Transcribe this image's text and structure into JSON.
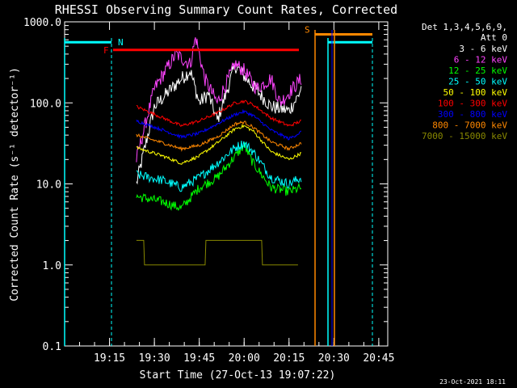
{
  "chart_data": {
    "type": "line",
    "title": "RHESSI Observing Summary Count Rates, Corrected",
    "xlabel": "Start Time (27-Oct-13 19:07:22)",
    "ylabel": "Corrected Count Rate (s⁻¹ detector⁻¹)",
    "yscale": "log",
    "ylim": [
      0.1,
      1000.0
    ],
    "y_ticks": [
      "0.1",
      "1.0",
      "10.0",
      "100.0",
      "1000.0"
    ],
    "xlim_minutes_after_1907": [
      0,
      40
    ],
    "x_ticks": [
      "19:15",
      "19:30",
      "19:45",
      "20:00",
      "20:15",
      "20:30",
      "20:45"
    ],
    "legend_title": [
      "Det 1,3,4,5,6,9,",
      "Att 0"
    ],
    "legend_position": "right",
    "series": [
      {
        "name": "3 - 6 keV",
        "color": "#ffffff",
        "anchors": [
          [
            19.4,
            10
          ],
          [
            19.5,
            90
          ],
          [
            19.63,
            180
          ],
          [
            19.7,
            250
          ],
          [
            19.75,
            100
          ],
          [
            19.8,
            130
          ],
          [
            19.85,
            60
          ],
          [
            19.95,
            290
          ],
          [
            20.05,
            160
          ],
          [
            20.15,
            90
          ],
          [
            20.25,
            80
          ],
          [
            20.3,
            120
          ],
          [
            20.32,
            160
          ]
        ]
      },
      {
        "name": "6 - 12 keV",
        "color": "#ff44ff",
        "anchors": [
          [
            19.4,
            20
          ],
          [
            19.5,
            150
          ],
          [
            19.62,
            400
          ],
          [
            19.7,
            300
          ],
          [
            19.73,
            650
          ],
          [
            19.78,
            200
          ],
          [
            19.85,
            100
          ],
          [
            19.95,
            300
          ],
          [
            20.0,
            250
          ],
          [
            20.07,
            150
          ],
          [
            20.15,
            200
          ],
          [
            20.2,
            100
          ],
          [
            20.32,
            200
          ]
        ]
      },
      {
        "name": "12 - 25 keV",
        "color": "#00ff00",
        "anchors": [
          [
            19.4,
            7
          ],
          [
            19.55,
            6
          ],
          [
            19.65,
            5
          ],
          [
            19.75,
            9
          ],
          [
            19.85,
            12
          ],
          [
            19.95,
            22
          ],
          [
            20.0,
            30
          ],
          [
            20.05,
            18
          ],
          [
            20.15,
            9
          ],
          [
            20.25,
            8
          ],
          [
            20.32,
            9
          ]
        ]
      },
      {
        "name": "25 - 50 keV",
        "color": "#00ffff",
        "anchors": [
          [
            19.4,
            13
          ],
          [
            19.55,
            11
          ],
          [
            19.65,
            9
          ],
          [
            19.75,
            12
          ],
          [
            19.85,
            18
          ],
          [
            19.95,
            28
          ],
          [
            20.0,
            32
          ],
          [
            20.05,
            25
          ],
          [
            20.15,
            12
          ],
          [
            20.25,
            10
          ],
          [
            20.32,
            12
          ]
        ]
      },
      {
        "name": "50 - 100 keV",
        "color": "#ffff00",
        "anchors": [
          [
            19.4,
            28
          ],
          [
            19.55,
            22
          ],
          [
            19.65,
            18
          ],
          [
            19.75,
            22
          ],
          [
            19.85,
            32
          ],
          [
            19.95,
            48
          ],
          [
            20.0,
            52
          ],
          [
            20.05,
            45
          ],
          [
            20.15,
            25
          ],
          [
            20.25,
            20
          ],
          [
            20.32,
            24
          ]
        ]
      },
      {
        "name": "100 - 300 keV",
        "color": "#ff0000",
        "anchors": [
          [
            19.4,
            90
          ],
          [
            19.55,
            65
          ],
          [
            19.65,
            52
          ],
          [
            19.75,
            60
          ],
          [
            19.85,
            75
          ],
          [
            19.95,
            100
          ],
          [
            20.0,
            105
          ],
          [
            20.05,
            95
          ],
          [
            20.15,
            65
          ],
          [
            20.25,
            52
          ],
          [
            20.32,
            60
          ]
        ]
      },
      {
        "name": "300 - 800 keV",
        "color": "#0000ff",
        "anchors": [
          [
            19.4,
            60
          ],
          [
            19.55,
            46
          ],
          [
            19.65,
            38
          ],
          [
            19.75,
            42
          ],
          [
            19.85,
            55
          ],
          [
            19.95,
            72
          ],
          [
            20.0,
            78
          ],
          [
            20.05,
            70
          ],
          [
            20.15,
            46
          ],
          [
            20.25,
            36
          ],
          [
            20.32,
            44
          ]
        ]
      },
      {
        "name": "800 - 7000 keV",
        "color": "#ff8800",
        "anchors": [
          [
            19.4,
            40
          ],
          [
            19.55,
            32
          ],
          [
            19.65,
            27
          ],
          [
            19.75,
            30
          ],
          [
            19.85,
            38
          ],
          [
            19.95,
            55
          ],
          [
            20.0,
            58
          ],
          [
            20.05,
            50
          ],
          [
            20.15,
            33
          ],
          [
            20.25,
            27
          ],
          [
            20.32,
            32
          ]
        ]
      },
      {
        "name": "7000 - 15000 keV",
        "color": "#888800",
        "anchors": [
          [
            19.4,
            1.8
          ],
          [
            19.5,
            1.0
          ],
          [
            19.6,
            1.0
          ],
          [
            19.7,
            1.0
          ],
          [
            19.8,
            1.5
          ],
          [
            19.95,
            2.5
          ],
          [
            20.05,
            2.0
          ],
          [
            20.15,
            1.0
          ],
          [
            20.3,
            1.0
          ]
        ]
      }
    ],
    "annotations": [
      {
        "label": "N",
        "color": "#00ffff",
        "value": 560
      },
      {
        "label": "F",
        "color": "#ff0000",
        "value": 450
      },
      {
        "label": "S",
        "color": "#ff8800",
        "value": 700
      }
    ]
  },
  "footer_timestamp": "23-Oct-2021 18:11",
  "colors": {
    "background": "#000000",
    "axes": "#ffffff"
  }
}
